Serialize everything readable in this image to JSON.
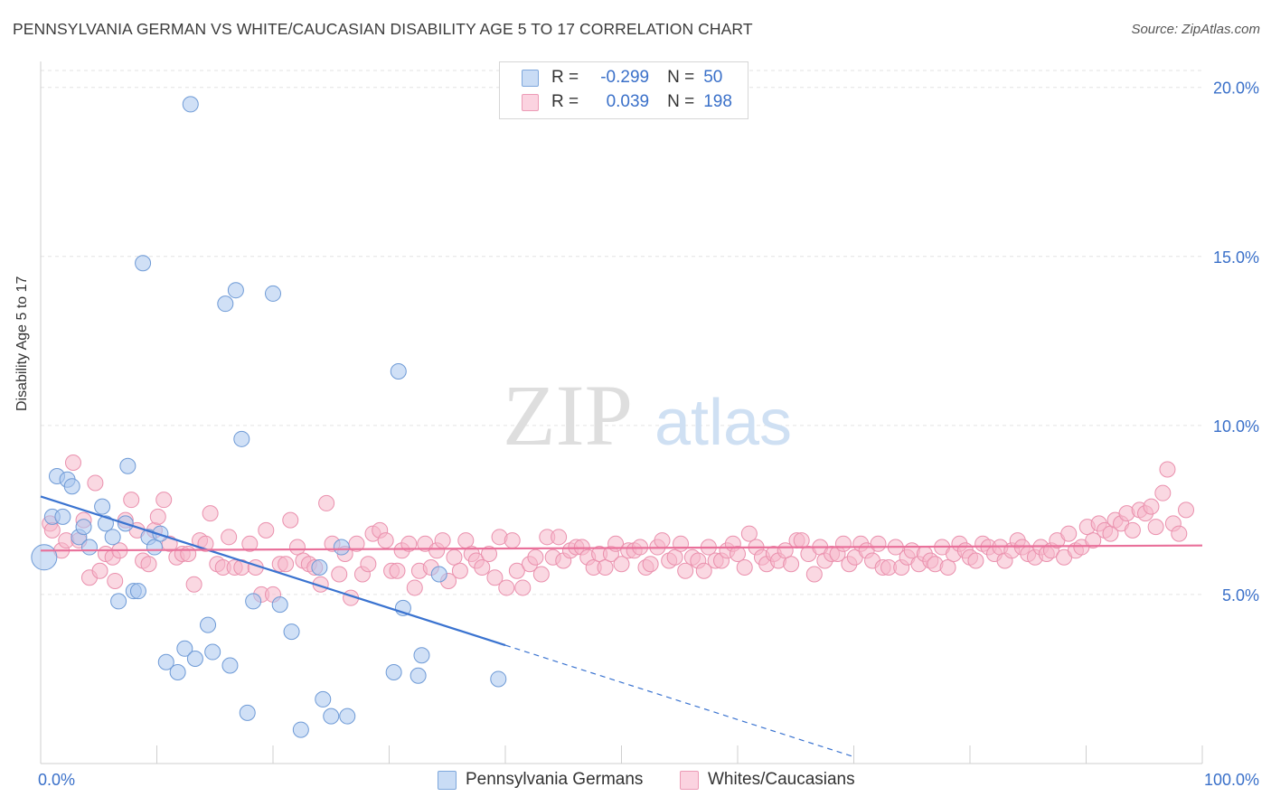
{
  "title": "PENNSYLVANIA GERMAN VS WHITE/CAUCASIAN DISABILITY AGE 5 TO 17 CORRELATION CHART",
  "source": "Source: ZipAtlas.com",
  "watermark": {
    "zip": "ZIP",
    "atlas": "atlas"
  },
  "legend_top": {
    "r_label": "R =",
    "n_label": "N =",
    "rows": [
      {
        "r": "-0.299",
        "n": "50",
        "color": "#a9c6ee"
      },
      {
        "r": "0.039",
        "n": "198",
        "color": "#f5b8cb"
      }
    ]
  },
  "legend_bottom": [
    {
      "label": "Pennsylvania Germans",
      "color": "#a9c6ee"
    },
    {
      "label": "Whites/Caucasians",
      "color": "#f5b8cb"
    }
  ],
  "chart_data": {
    "type": "scatter",
    "title": "PENNSYLVANIA GERMAN VS WHITE/CAUCASIAN DISABILITY AGE 5 TO 17 CORRELATION CHART",
    "xlabel": "",
    "ylabel": "Disability Age 5 to 17",
    "xlim": [
      0,
      100
    ],
    "ylim": [
      0,
      20.5
    ],
    "x_tick_labels": {
      "min": "0.0%",
      "max": "100.0%"
    },
    "y_ticks": [
      {
        "value": 5,
        "label": "5.0%"
      },
      {
        "value": 10,
        "label": "10.0%"
      },
      {
        "value": 15,
        "label": "15.0%"
      },
      {
        "value": 20,
        "label": "20.0%"
      }
    ],
    "grid": true,
    "series": [
      {
        "name": "Pennsylvania Germans",
        "color": "#a9c6ee",
        "stroke": "#6e9ad6",
        "trend": {
          "x0": 0,
          "y0": 7.9,
          "x1": 40,
          "y1": 3.5,
          "dashed_to_x": 70
        },
        "points": [
          [
            0.3,
            6.1
          ],
          [
            1.0,
            7.3
          ],
          [
            1.4,
            8.5
          ],
          [
            1.9,
            7.3
          ],
          [
            2.3,
            8.4
          ],
          [
            2.7,
            8.2
          ],
          [
            3.3,
            6.7
          ],
          [
            3.7,
            7.0
          ],
          [
            4.2,
            6.4
          ],
          [
            5.3,
            7.6
          ],
          [
            5.6,
            7.1
          ],
          [
            6.2,
            6.7
          ],
          [
            6.7,
            4.8
          ],
          [
            7.3,
            7.1
          ],
          [
            7.5,
            8.8
          ],
          [
            8.0,
            5.1
          ],
          [
            8.4,
            5.1
          ],
          [
            8.8,
            14.8
          ],
          [
            9.3,
            6.7
          ],
          [
            9.8,
            6.4
          ],
          [
            10.3,
            6.8
          ],
          [
            10.8,
            3.0
          ],
          [
            11.8,
            2.7
          ],
          [
            12.4,
            3.4
          ],
          [
            12.9,
            19.5
          ],
          [
            13.3,
            3.1
          ],
          [
            14.4,
            4.1
          ],
          [
            14.8,
            3.3
          ],
          [
            15.9,
            13.6
          ],
          [
            16.3,
            2.9
          ],
          [
            16.8,
            14.0
          ],
          [
            17.3,
            9.6
          ],
          [
            17.8,
            1.5
          ],
          [
            18.3,
            4.8
          ],
          [
            20.0,
            13.9
          ],
          [
            20.6,
            4.7
          ],
          [
            21.6,
            3.9
          ],
          [
            22.4,
            1.0
          ],
          [
            24.0,
            5.8
          ],
          [
            24.3,
            1.9
          ],
          [
            25.0,
            1.4
          ],
          [
            25.9,
            6.4
          ],
          [
            26.4,
            1.4
          ],
          [
            30.4,
            2.7
          ],
          [
            30.8,
            11.6
          ],
          [
            31.2,
            4.6
          ],
          [
            32.5,
            2.6
          ],
          [
            32.8,
            3.2
          ],
          [
            34.3,
            5.6
          ],
          [
            39.4,
            2.5
          ]
        ]
      },
      {
        "name": "Whites/Caucasians",
        "color": "#f5b8cb",
        "stroke": "#ea90ad",
        "trend": {
          "x0": 0,
          "y0": 6.3,
          "x1": 100,
          "y1": 6.45
        },
        "points": [
          [
            0.8,
            7.1
          ],
          [
            1.0,
            6.9
          ],
          [
            1.8,
            6.3
          ],
          [
            2.2,
            6.6
          ],
          [
            2.8,
            8.9
          ],
          [
            3.3,
            6.6
          ],
          [
            3.7,
            7.2
          ],
          [
            4.2,
            5.5
          ],
          [
            4.7,
            8.3
          ],
          [
            5.1,
            5.7
          ],
          [
            5.6,
            6.2
          ],
          [
            6.2,
            6.1
          ],
          [
            6.4,
            5.4
          ],
          [
            6.8,
            6.3
          ],
          [
            7.3,
            7.2
          ],
          [
            7.8,
            7.8
          ],
          [
            8.3,
            6.9
          ],
          [
            8.8,
            6.0
          ],
          [
            9.3,
            5.9
          ],
          [
            9.8,
            6.9
          ],
          [
            10.1,
            7.3
          ],
          [
            10.6,
            7.8
          ],
          [
            11.1,
            6.5
          ],
          [
            11.7,
            6.1
          ],
          [
            12.2,
            6.2
          ],
          [
            12.7,
            6.2
          ],
          [
            13.2,
            5.3
          ],
          [
            13.7,
            6.6
          ],
          [
            14.2,
            6.5
          ],
          [
            14.6,
            7.4
          ],
          [
            15.2,
            5.9
          ],
          [
            15.7,
            5.8
          ],
          [
            16.2,
            6.7
          ],
          [
            16.7,
            5.8
          ],
          [
            17.3,
            5.8
          ],
          [
            18.0,
            6.5
          ],
          [
            18.5,
            5.8
          ],
          [
            19.0,
            5.0
          ],
          [
            19.4,
            6.9
          ],
          [
            20.0,
            5.0
          ],
          [
            20.6,
            5.9
          ],
          [
            21.1,
            5.9
          ],
          [
            21.5,
            7.2
          ],
          [
            22.1,
            6.4
          ],
          [
            22.6,
            6.0
          ],
          [
            23.1,
            5.9
          ],
          [
            23.6,
            5.8
          ],
          [
            24.1,
            5.3
          ],
          [
            24.6,
            7.7
          ],
          [
            25.1,
            6.5
          ],
          [
            25.7,
            5.6
          ],
          [
            26.2,
            6.2
          ],
          [
            26.7,
            4.9
          ],
          [
            27.2,
            6.5
          ],
          [
            27.7,
            5.6
          ],
          [
            28.2,
            5.9
          ],
          [
            28.6,
            6.8
          ],
          [
            29.2,
            6.9
          ],
          [
            29.7,
            6.6
          ],
          [
            30.2,
            5.7
          ],
          [
            30.7,
            5.7
          ],
          [
            31.1,
            6.3
          ],
          [
            31.7,
            6.5
          ],
          [
            32.2,
            5.2
          ],
          [
            32.6,
            5.7
          ],
          [
            33.1,
            6.5
          ],
          [
            33.6,
            5.8
          ],
          [
            34.1,
            6.3
          ],
          [
            34.6,
            6.6
          ],
          [
            35.1,
            5.4
          ],
          [
            35.6,
            6.1
          ],
          [
            36.1,
            5.7
          ],
          [
            36.6,
            6.6
          ],
          [
            37.1,
            6.2
          ],
          [
            37.5,
            6.0
          ],
          [
            38.0,
            5.8
          ],
          [
            38.6,
            6.2
          ],
          [
            39.1,
            5.5
          ],
          [
            39.5,
            6.7
          ],
          [
            40.1,
            5.2
          ],
          [
            40.6,
            6.6
          ],
          [
            41.0,
            5.7
          ],
          [
            41.5,
            5.2
          ],
          [
            42.1,
            5.9
          ],
          [
            42.6,
            6.1
          ],
          [
            43.1,
            5.6
          ],
          [
            43.6,
            6.7
          ],
          [
            44.1,
            6.1
          ],
          [
            44.6,
            6.7
          ],
          [
            45.0,
            6.0
          ],
          [
            45.6,
            6.3
          ],
          [
            46.1,
            6.4
          ],
          [
            46.6,
            6.4
          ],
          [
            47.1,
            6.1
          ],
          [
            47.6,
            5.8
          ],
          [
            48.1,
            6.2
          ],
          [
            48.6,
            5.8
          ],
          [
            49.1,
            6.2
          ],
          [
            49.5,
            6.5
          ],
          [
            50.0,
            5.9
          ],
          [
            50.6,
            6.3
          ],
          [
            51.1,
            6.3
          ],
          [
            51.6,
            6.4
          ],
          [
            52.1,
            5.8
          ],
          [
            52.5,
            5.9
          ],
          [
            53.1,
            6.4
          ],
          [
            53.5,
            6.6
          ],
          [
            54.1,
            6.0
          ],
          [
            54.6,
            6.1
          ],
          [
            55.1,
            6.5
          ],
          [
            55.5,
            5.7
          ],
          [
            56.1,
            6.1
          ],
          [
            56.6,
            6.0
          ],
          [
            57.1,
            5.7
          ],
          [
            57.5,
            6.4
          ],
          [
            58.1,
            6.0
          ],
          [
            58.6,
            6.0
          ],
          [
            59.1,
            6.3
          ],
          [
            59.6,
            6.5
          ],
          [
            60.0,
            6.2
          ],
          [
            60.6,
            5.8
          ],
          [
            61.0,
            6.8
          ],
          [
            61.6,
            6.4
          ],
          [
            62.1,
            6.1
          ],
          [
            62.5,
            5.9
          ],
          [
            63.1,
            6.2
          ],
          [
            63.5,
            6.0
          ],
          [
            64.1,
            6.3
          ],
          [
            64.6,
            5.9
          ],
          [
            65.1,
            6.6
          ],
          [
            65.5,
            6.6
          ],
          [
            66.1,
            6.2
          ],
          [
            66.6,
            5.6
          ],
          [
            67.1,
            6.4
          ],
          [
            67.5,
            6.0
          ],
          [
            68.1,
            6.2
          ],
          [
            68.6,
            6.2
          ],
          [
            69.1,
            6.5
          ],
          [
            69.6,
            5.9
          ],
          [
            70.1,
            6.1
          ],
          [
            70.6,
            6.5
          ],
          [
            71.1,
            6.3
          ],
          [
            71.6,
            6.0
          ],
          [
            72.1,
            6.5
          ],
          [
            72.5,
            5.8
          ],
          [
            73.0,
            5.8
          ],
          [
            73.6,
            6.4
          ],
          [
            74.1,
            5.8
          ],
          [
            74.6,
            6.1
          ],
          [
            75.0,
            6.3
          ],
          [
            75.6,
            5.9
          ],
          [
            76.1,
            6.2
          ],
          [
            76.6,
            6.0
          ],
          [
            77.0,
            5.9
          ],
          [
            77.6,
            6.4
          ],
          [
            78.1,
            5.8
          ],
          [
            78.6,
            6.2
          ],
          [
            79.1,
            6.5
          ],
          [
            79.6,
            6.3
          ],
          [
            80.0,
            6.1
          ],
          [
            80.5,
            6.0
          ],
          [
            81.1,
            6.5
          ],
          [
            81.6,
            6.4
          ],
          [
            82.1,
            6.2
          ],
          [
            82.6,
            6.4
          ],
          [
            83.0,
            6.0
          ],
          [
            83.6,
            6.3
          ],
          [
            84.1,
            6.6
          ],
          [
            84.5,
            6.4
          ],
          [
            85.0,
            6.2
          ],
          [
            85.6,
            6.1
          ],
          [
            86.1,
            6.4
          ],
          [
            86.6,
            6.2
          ],
          [
            87.0,
            6.3
          ],
          [
            87.5,
            6.6
          ],
          [
            88.1,
            6.1
          ],
          [
            88.5,
            6.8
          ],
          [
            89.1,
            6.3
          ],
          [
            89.6,
            6.4
          ],
          [
            90.1,
            7.0
          ],
          [
            90.6,
            6.6
          ],
          [
            91.1,
            7.1
          ],
          [
            91.6,
            6.9
          ],
          [
            92.1,
            6.8
          ],
          [
            92.5,
            7.2
          ],
          [
            93.0,
            7.1
          ],
          [
            93.5,
            7.4
          ],
          [
            94.0,
            6.9
          ],
          [
            94.6,
            7.5
          ],
          [
            95.1,
            7.4
          ],
          [
            95.6,
            7.6
          ],
          [
            96.0,
            7.0
          ],
          [
            96.6,
            8.0
          ],
          [
            97.0,
            8.7
          ],
          [
            97.5,
            7.1
          ],
          [
            98.0,
            6.8
          ],
          [
            98.6,
            7.5
          ]
        ]
      }
    ]
  }
}
